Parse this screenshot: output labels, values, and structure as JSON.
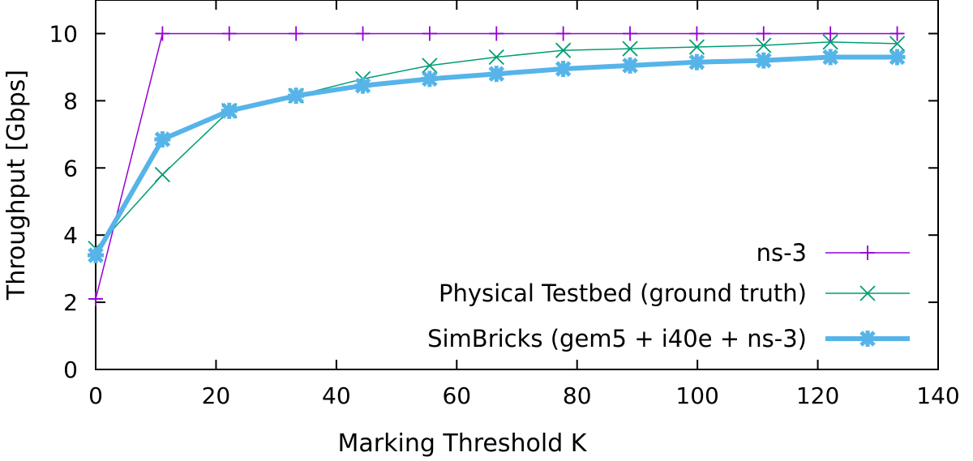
{
  "chart_data": {
    "type": "line",
    "title": "",
    "xlabel": "Marking Threshold K",
    "ylabel": "Throughput [Gbps]",
    "xlim": [
      0,
      140
    ],
    "ylim": [
      0,
      11
    ],
    "xticks": [
      0,
      20,
      40,
      60,
      80,
      100,
      120,
      140
    ],
    "yticks": [
      0,
      2,
      4,
      6,
      8,
      10
    ],
    "grid": false,
    "legend_position": "bottom-right",
    "series": [
      {
        "name": "ns-3",
        "color": "#9400D3",
        "marker": "plus",
        "x": [
          0,
          11.1,
          22.2,
          33.3,
          44.4,
          55.5,
          66.6,
          77.7,
          88.8,
          99.9,
          111,
          122.1,
          133.2
        ],
        "y": [
          2.1,
          10.0,
          10.0,
          10.0,
          10.0,
          10.0,
          10.0,
          10.0,
          10.0,
          10.0,
          10.0,
          10.0,
          10.0
        ]
      },
      {
        "name": "Physical Testbed (ground truth)",
        "color": "#009E73",
        "marker": "cross",
        "x": [
          0,
          11.1,
          22.2,
          33.3,
          44.4,
          55.5,
          66.6,
          77.7,
          88.8,
          99.9,
          111,
          122.1,
          133.2
        ],
        "y": [
          3.6,
          5.8,
          7.7,
          8.15,
          8.65,
          9.05,
          9.3,
          9.5,
          9.55,
          9.6,
          9.65,
          9.75,
          9.7
        ]
      },
      {
        "name": "SimBricks (gem5 + i40e + ns-3)",
        "color": "#56B4E9",
        "marker": "star",
        "x": [
          0,
          11.1,
          22.2,
          33.3,
          44.4,
          55.5,
          66.6,
          77.7,
          88.8,
          99.9,
          111,
          122.1,
          133.2
        ],
        "y": [
          3.4,
          6.85,
          7.7,
          8.15,
          8.45,
          8.65,
          8.8,
          8.95,
          9.05,
          9.15,
          9.2,
          9.3,
          9.3
        ]
      }
    ]
  }
}
